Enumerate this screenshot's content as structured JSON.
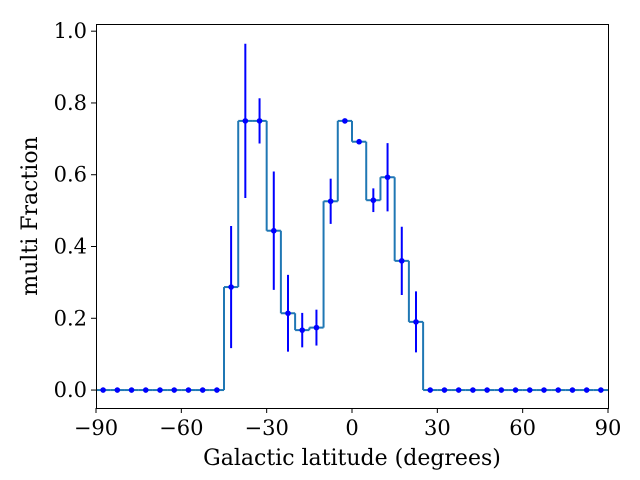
{
  "chart_data": {
    "type": "line",
    "subtype": "step-histogram-with-errorbars",
    "title": "",
    "xlabel": "Galactic latitude (degrees)",
    "ylabel": "multi Fraction",
    "xlim": [
      -90,
      90
    ],
    "ylim": [
      -0.05,
      1.02
    ],
    "xticks": [
      -90,
      -60,
      -30,
      0,
      30,
      60,
      90
    ],
    "xtick_labels": [
      "−90",
      "−60",
      "−30",
      "0",
      "30",
      "60",
      "90"
    ],
    "yticks": [
      0.0,
      0.2,
      0.4,
      0.6,
      0.8,
      1.0
    ],
    "ytick_labels": [
      "0.0",
      "0.2",
      "0.4",
      "0.6",
      "0.8",
      "1.0"
    ],
    "grid": false,
    "legend": "none",
    "step_color": "#1f77b4",
    "point_color": "#0000ff",
    "bin_width": 5,
    "x": [
      -87.5,
      -82.5,
      -77.5,
      -72.5,
      -67.5,
      -62.5,
      -57.5,
      -52.5,
      -47.5,
      -42.5,
      -37.5,
      -32.5,
      -27.5,
      -22.5,
      -17.5,
      -12.5,
      -7.5,
      -2.5,
      2.5,
      7.5,
      12.5,
      17.5,
      22.5,
      27.5,
      32.5,
      37.5,
      42.5,
      47.5,
      52.5,
      57.5,
      62.5,
      67.5,
      72.5,
      77.5,
      82.5,
      87.5
    ],
    "y": [
      0,
      0,
      0,
      0,
      0,
      0,
      0,
      0,
      0,
      0.287,
      0.75,
      0.75,
      0.444,
      0.214,
      0.167,
      0.174,
      0.526,
      0.75,
      0.692,
      0.529,
      0.593,
      0.36,
      0.19,
      0,
      0,
      0,
      0,
      0,
      0,
      0,
      0,
      0,
      0,
      0,
      0,
      0
    ],
    "yerr": [
      0,
      0,
      0,
      0,
      0,
      0,
      0,
      0,
      0,
      0.17,
      0.215,
      0.063,
      0.165,
      0.107,
      0.048,
      0.05,
      0.063,
      0,
      0,
      0.033,
      0.095,
      0.095,
      0.085,
      0,
      0,
      0,
      0,
      0,
      0,
      0,
      0,
      0,
      0,
      0,
      0,
      0
    ]
  }
}
